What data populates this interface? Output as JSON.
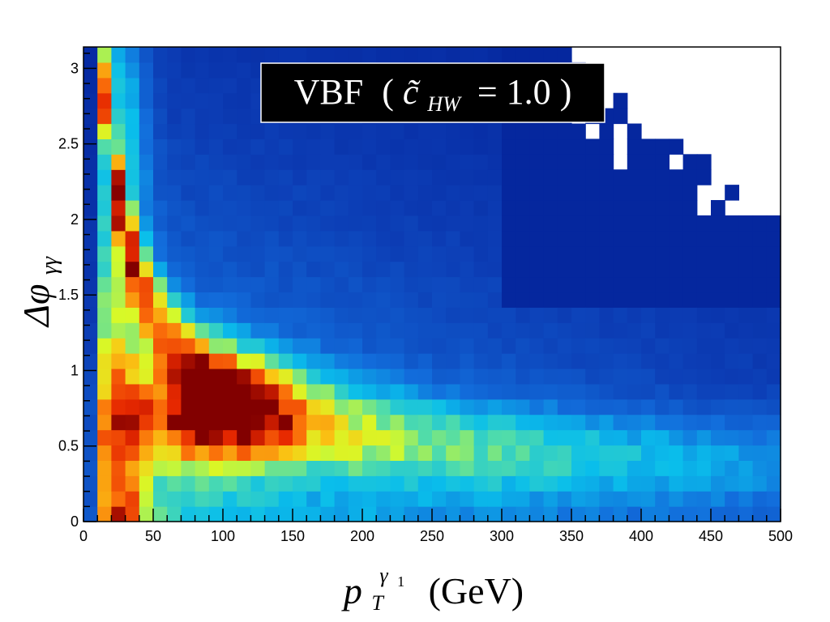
{
  "chart_data": {
    "type": "heatmap",
    "title": "VBF (c̃_HW = 1.0)",
    "title_parts": {
      "process": "VBF",
      "open": "(",
      "coupling": "c̃",
      "sub": "HW",
      "eq": "= 1.0",
      "close": ")"
    },
    "xlabel": "p_T^γ1 (GeV)",
    "xlabel_parts": {
      "base": "p",
      "sub": "T",
      "sup": "γ",
      "supsub": "1",
      "unit": "(GeV)"
    },
    "ylabel": "Δφ_γγ",
    "ylabel_parts": {
      "base": "Δφ",
      "sub": "γγ"
    },
    "xlim": [
      0,
      500
    ],
    "ylim": [
      0,
      3.1416
    ],
    "x_bins": 50,
    "y_bins": 31,
    "x_ticks": [
      "0",
      "50",
      "100",
      "150",
      "200",
      "250",
      "300",
      "350",
      "400",
      "450",
      "500"
    ],
    "y_ticks": [
      "0",
      "0.5",
      "1",
      "1.5",
      "2",
      "2.5",
      "3"
    ],
    "colormap": "rainbow (dark blue → cyan → yellow → red → dark red)",
    "peak": {
      "x": 90,
      "y": 0.72
    },
    "empty_region": "upper right corner (x > 350 GeV, Δφ > 2.1)",
    "legend_placement": "top-center (title box)",
    "grid": false
  }
}
